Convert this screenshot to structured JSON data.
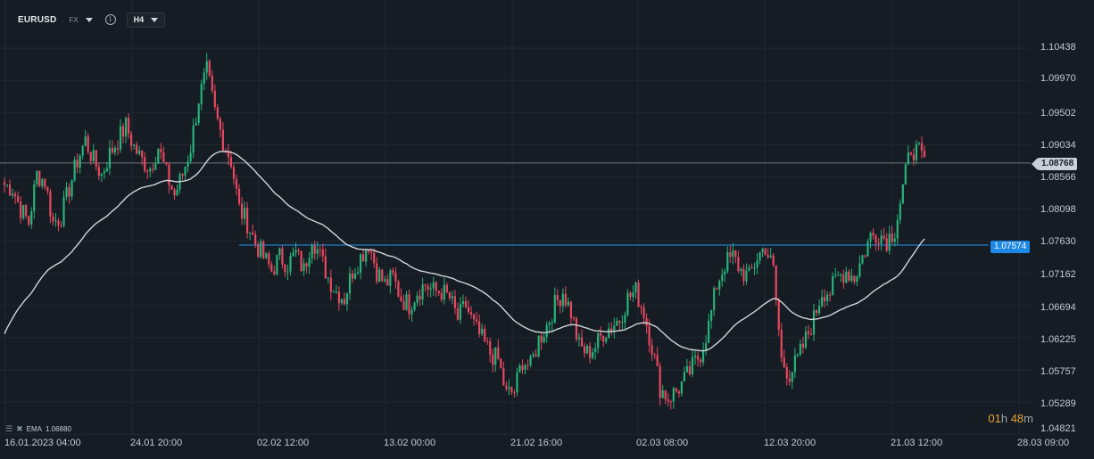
{
  "toolbar": {
    "symbol": "EURUSD",
    "market": "FX",
    "timeframe": "H4"
  },
  "indicator": {
    "label": "EMA",
    "value": "1.06880"
  },
  "countdown": {
    "hours": "01",
    "hours_unit": "h",
    "minutes": "48",
    "minutes_unit": "m"
  },
  "price_axis": {
    "labels": [
      "1.10438",
      "1.09970",
      "1.09502",
      "1.09034",
      "1.08566",
      "1.08098",
      "1.07630",
      "1.07162",
      "1.06694",
      "1.06225",
      "1.05757",
      "1.05289",
      "1.04821"
    ]
  },
  "time_axis": {
    "labels": [
      "16.01.2023  04:00",
      "24.01  20:00",
      "02.02  12:00",
      "13.02  00:00",
      "21.02  16:00",
      "02.03  08:00",
      "12.03  20:00",
      "21.03  12:00",
      "28.03  09:00"
    ]
  },
  "current_price": {
    "label": "1.08768",
    "value": 1.08768
  },
  "horizontal_level": {
    "label": "1.07574",
    "value": 1.07574
  },
  "colors": {
    "background": "#161c23",
    "grid": "#1f2730",
    "up": "#26b37a",
    "down": "#e8485f",
    "ema": "#d0d4d8",
    "level": "#1e88e5",
    "price_line": "#6c7782"
  },
  "chart_data": {
    "type": "candlestick",
    "symbol": "EURUSD",
    "timeframe": "H4",
    "ylim": [
      1.04821,
      1.10438
    ],
    "x_ticks": [
      "16.01.2023  04:00",
      "24.01  20:00",
      "02.02  12:00",
      "13.02  00:00",
      "21.02  16:00",
      "02.03  08:00",
      "12.03  20:00",
      "21.03  12:00",
      "28.03  09:00"
    ],
    "close_path": [
      [
        0,
        1.0845
      ],
      [
        3,
        1.084
      ],
      [
        6,
        1.081
      ],
      [
        9,
        1.079
      ],
      [
        12,
        1.086
      ],
      [
        15,
        1.085
      ],
      [
        18,
        1.079
      ],
      [
        21,
        1.08
      ],
      [
        24,
        1.084
      ],
      [
        27,
        1.088
      ],
      [
        30,
        1.091
      ],
      [
        33,
        1.088
      ],
      [
        36,
        1.086
      ],
      [
        39,
        1.089
      ],
      [
        42,
        1.091
      ],
      [
        45,
        1.093
      ],
      [
        48,
        1.09
      ],
      [
        51,
        1.088
      ],
      [
        54,
        1.087
      ],
      [
        57,
        1.09
      ],
      [
        60,
        1.086
      ],
      [
        63,
        1.083
      ],
      [
        66,
        1.086
      ],
      [
        69,
        1.09
      ],
      [
        72,
        1.097
      ],
      [
        75,
        1.101
      ],
      [
        78,
        1.095
      ],
      [
        81,
        1.091
      ],
      [
        84,
        1.088
      ],
      [
        87,
        1.081
      ],
      [
        90,
        1.079
      ],
      [
        93,
        1.076
      ],
      [
        96,
        1.074
      ],
      [
        99,
        1.072
      ],
      [
        102,
        1.074
      ],
      [
        105,
        1.073
      ],
      [
        108,
        1.0745
      ],
      [
        111,
        1.072
      ],
      [
        114,
        1.077
      ],
      [
        117,
        1.074
      ],
      [
        120,
        1.071
      ],
      [
        123,
        1.069
      ],
      [
        126,
        1.068
      ],
      [
        129,
        1.072
      ],
      [
        132,
        1.074
      ],
      [
        135,
        1.076
      ],
      [
        138,
        1.072
      ],
      [
        141,
        1.07
      ],
      [
        144,
        1.071
      ],
      [
        147,
        1.068
      ],
      [
        150,
        1.067
      ],
      [
        153,
        1.069
      ],
      [
        156,
        1.07
      ],
      [
        159,
        1.069
      ],
      [
        162,
        1.069
      ],
      [
        165,
        1.068
      ],
      [
        168,
        1.065
      ],
      [
        171,
        1.067
      ],
      [
        174,
        1.064
      ],
      [
        177,
        1.062
      ],
      [
        180,
        1.06
      ],
      [
        183,
        1.059
      ],
      [
        186,
        1.054
      ],
      [
        189,
        1.0545
      ],
      [
        192,
        1.059
      ],
      [
        195,
        1.058
      ],
      [
        198,
        1.062
      ],
      [
        201,
        1.064
      ],
      [
        204,
        1.067
      ],
      [
        207,
        1.069
      ],
      [
        210,
        1.066
      ],
      [
        213,
        1.061
      ],
      [
        216,
        1.06
      ],
      [
        219,
        1.061
      ],
      [
        222,
        1.063
      ],
      [
        225,
        1.064
      ],
      [
        228,
        1.065
      ],
      [
        231,
        1.068
      ],
      [
        234,
        1.069
      ],
      [
        237,
        1.066
      ],
      [
        240,
        1.061
      ],
      [
        243,
        1.055
      ],
      [
        246,
        1.0535
      ],
      [
        249,
        1.0545
      ],
      [
        252,
        1.056
      ],
      [
        255,
        1.058
      ],
      [
        258,
        1.06
      ],
      [
        261,
        1.064
      ],
      [
        264,
        1.07
      ],
      [
        267,
        1.073
      ],
      [
        270,
        1.074
      ],
      [
        273,
        1.072
      ],
      [
        276,
        1.071
      ],
      [
        279,
        1.074
      ],
      [
        282,
        1.0755
      ],
      [
        285,
        1.072
      ],
      [
        288,
        1.059
      ],
      [
        291,
        1.057
      ],
      [
        294,
        1.059
      ],
      [
        297,
        1.062
      ],
      [
        300,
        1.065
      ],
      [
        303,
        1.069
      ],
      [
        306,
        1.069
      ],
      [
        309,
        1.071
      ],
      [
        312,
        1.072
      ],
      [
        315,
        1.071
      ],
      [
        318,
        1.074
      ],
      [
        321,
        1.077
      ],
      [
        324,
        1.0775
      ],
      [
        327,
        1.0765
      ],
      [
        330,
        1.078
      ],
      [
        333,
        1.084
      ],
      [
        336,
        1.09
      ],
      [
        339,
        1.089
      ],
      [
        341,
        1.0877
      ]
    ],
    "ema": {
      "label": "EMA",
      "value": 1.0688
    },
    "current_price": 1.08768,
    "horizontal_level": 1.07574,
    "countdown": "01h 48m"
  }
}
